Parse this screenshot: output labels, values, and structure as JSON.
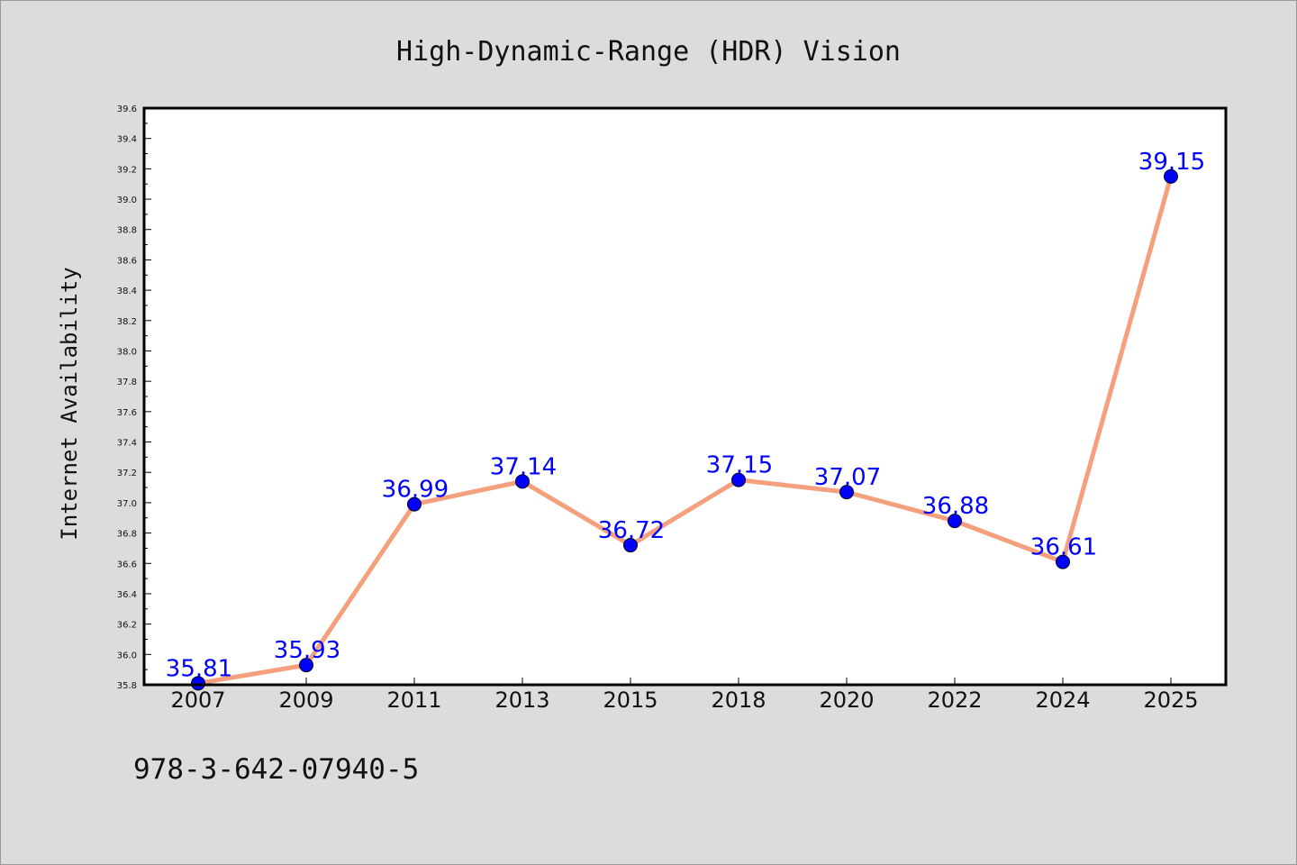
{
  "chart_data": {
    "type": "line",
    "title": "High-Dynamic-Range (HDR) Vision",
    "xlabel": "",
    "ylabel": "Internet Availability",
    "categories": [
      "2007",
      "2009",
      "2011",
      "2013",
      "2015",
      "2018",
      "2020",
      "2022",
      "2024",
      "2025"
    ],
    "series": [
      {
        "values": [
          35.81,
          35.93,
          36.99,
          37.14,
          36.72,
          37.15,
          37.07,
          36.88,
          36.61,
          39.15
        ],
        "data_labels": [
          "35.81",
          "35.93",
          "36.99",
          "37.14",
          "36.72",
          "37.15",
          "37.07",
          "36.88",
          "36.61",
          "39.15"
        ],
        "line_color": "#f4a07c",
        "marker_color": "#0000ff"
      }
    ],
    "ylim": [
      35.8,
      39.6
    ],
    "yticks": [
      "35.8",
      "36.0",
      "36.2",
      "36.4",
      "36.6",
      "36.8",
      "37.0",
      "37.2",
      "37.4",
      "37.6",
      "37.8",
      "38.0",
      "38.2",
      "38.4",
      "38.6",
      "38.8",
      "39.0",
      "39.2",
      "39.4",
      "39.6"
    ],
    "grid": false,
    "legend": "none",
    "background_color": "#dcdcdc",
    "plot_background_color": "#ffffff"
  },
  "footer": {
    "code": "978-3-642-07940-5"
  }
}
